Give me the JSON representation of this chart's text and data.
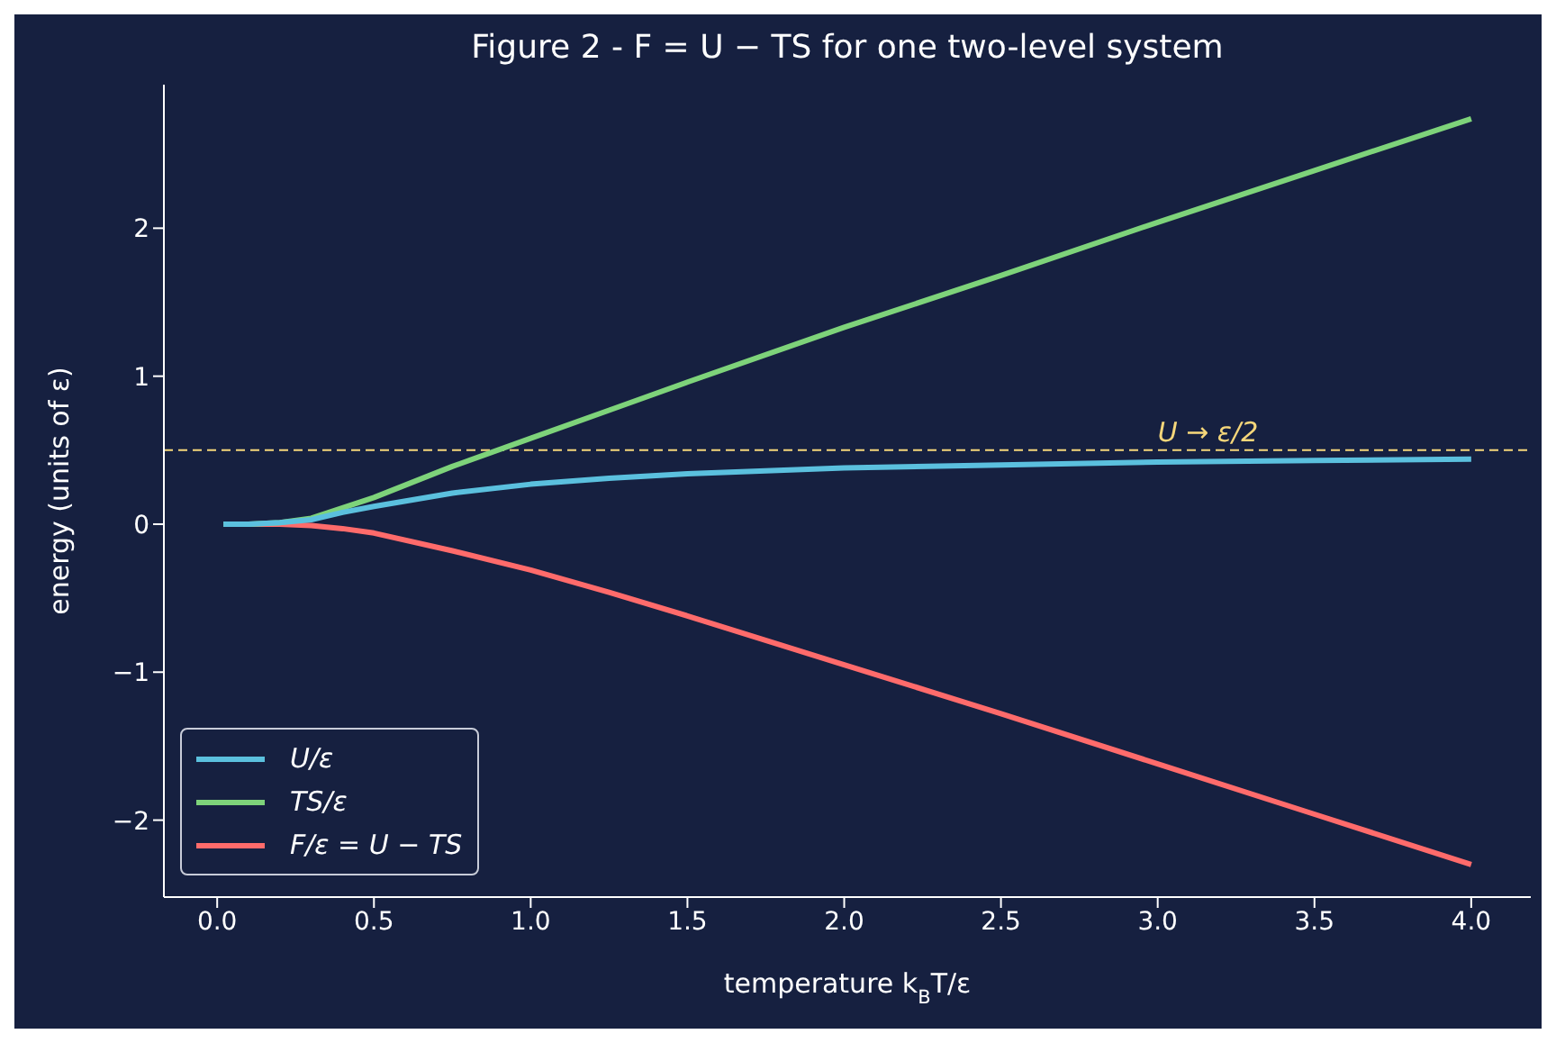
{
  "chart_data": {
    "type": "line",
    "title": "Figure 2 - F = U − TS for one two-level system",
    "xlabel": "temperature  k$_{B}$T/ε",
    "ylabel": "energy (units of ε)",
    "x": [
      0.02,
      0.1,
      0.2,
      0.3,
      0.4,
      0.5,
      0.75,
      1,
      1.25,
      1.5,
      2,
      2.5,
      3,
      3.5,
      4
    ],
    "series": [
      {
        "name": "U/ε",
        "color": "#5bc0de",
        "values": [
          0,
          0,
          0.01,
          0.03,
          0.08,
          0.12,
          0.21,
          0.27,
          0.31,
          0.34,
          0.38,
          0.4,
          0.42,
          0.43,
          0.44
        ]
      },
      {
        "name": "TS/ε",
        "color": "#7ed37a",
        "values": [
          0,
          0,
          0.01,
          0.04,
          0.11,
          0.18,
          0.39,
          0.58,
          0.77,
          0.96,
          1.33,
          1.68,
          2.04,
          2.39,
          2.74
        ]
      },
      {
        "name": "F/ε = U − TS",
        "color": "#ff6b6b",
        "values": [
          0,
          0,
          0,
          -0.01,
          -0.03,
          -0.06,
          -0.18,
          -0.31,
          -0.46,
          -0.62,
          -0.95,
          -1.28,
          -1.62,
          -1.96,
          -2.3
        ]
      }
    ],
    "xlim": [
      -0.17,
      4.19
    ],
    "xticks": [
      {
        "value": 0,
        "label": "0.0"
      },
      {
        "value": 0.5,
        "label": "0.5"
      },
      {
        "value": 1,
        "label": "1.0"
      },
      {
        "value": 1.5,
        "label": "1.5"
      },
      {
        "value": 2,
        "label": "2.0"
      },
      {
        "value": 2.5,
        "label": "2.5"
      },
      {
        "value": 3,
        "label": "3.0"
      },
      {
        "value": 3.5,
        "label": "3.5"
      },
      {
        "value": 4,
        "label": "4.0"
      }
    ],
    "ylim": [
      -2.52,
      2.97
    ],
    "yticks": [
      {
        "value": -2,
        "label": "−2"
      },
      {
        "value": -1,
        "label": "−1"
      },
      0,
      1,
      2
    ],
    "ref_lines": [
      {
        "axis": "y",
        "value": 0.5,
        "color": "#f5d67a",
        "line_style": "dashed"
      }
    ],
    "annotations": [
      {
        "text": "U → ε/2",
        "x": 3.0,
        "y": 0.5
      }
    ],
    "grid": false,
    "legend": "bottom left",
    "marker": "none",
    "line_style": "solid"
  }
}
